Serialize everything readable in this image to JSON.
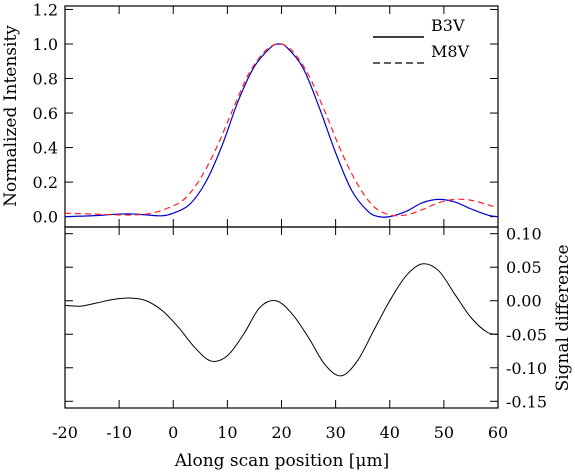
{
  "chart_data": [
    {
      "type": "line",
      "panel": "top",
      "ylabel": "Normalized Intensity",
      "xlim": [
        -20,
        60
      ],
      "ylim": [
        -0.06,
        1.22
      ],
      "y_tick_labels": [
        "0.0",
        "0.2",
        "0.4",
        "0.6",
        "0.8",
        "1.0",
        "1.2"
      ],
      "y_ticks": [
        0.0,
        0.2,
        0.4,
        0.6,
        0.8,
        1.0,
        1.2
      ],
      "grid": false,
      "legend_position": "top-right",
      "colors": {
        "B3V": "#0000cc",
        "M8V": "#ff2020"
      },
      "series": [
        {
          "name": "B3V",
          "linestyle": "solid",
          "x": [
            -20,
            -15,
            -10,
            -7,
            -5,
            -2,
            0,
            3,
            6,
            9,
            12,
            15,
            18,
            19.5,
            21,
            24,
            27,
            30,
            33,
            36,
            38,
            40,
            43,
            46,
            49,
            52,
            55,
            58,
            60
          ],
          "y": [
            0.0,
            0.005,
            0.015,
            0.015,
            0.01,
            0.005,
            0.02,
            0.07,
            0.2,
            0.41,
            0.67,
            0.87,
            0.98,
            1.0,
            0.98,
            0.86,
            0.63,
            0.37,
            0.15,
            0.03,
            0.0,
            0.0,
            0.03,
            0.08,
            0.1,
            0.085,
            0.045,
            0.01,
            0.0
          ]
        },
        {
          "name": "M8V",
          "linestyle": "dashed",
          "x": [
            -20,
            -15,
            -10,
            -7,
            -4,
            -1,
            2,
            5,
            8,
            11,
            14,
            17,
            19.5,
            22,
            25,
            28,
            31,
            34,
            37,
            40,
            43,
            46,
            49,
            52,
            55,
            58,
            60
          ],
          "y": [
            0.02,
            0.015,
            0.01,
            0.01,
            0.02,
            0.05,
            0.1,
            0.22,
            0.4,
            0.62,
            0.83,
            0.96,
            1.0,
            0.96,
            0.82,
            0.61,
            0.38,
            0.19,
            0.06,
            0.01,
            0.01,
            0.04,
            0.08,
            0.1,
            0.095,
            0.07,
            0.05
          ]
        }
      ]
    },
    {
      "type": "line",
      "panel": "bottom",
      "ylabel": "Signal difference",
      "xlabel": "Along scan position [μm]",
      "xlim": [
        -20,
        60
      ],
      "x_ticks": [
        -20,
        -10,
        0,
        10,
        20,
        30,
        40,
        50,
        60
      ],
      "x_tick_labels": [
        "-20",
        "-10",
        "0",
        "10",
        "20",
        "30",
        "40",
        "50",
        "60"
      ],
      "ylim": [
        -0.16,
        0.11
      ],
      "y_ticks": [
        0.1,
        0.05,
        0.0,
        -0.05,
        -0.1,
        -0.15
      ],
      "y_tick_labels": [
        "0.10",
        "0.05",
        "0.00",
        "-0.05",
        "-0.10",
        "-0.15"
      ],
      "grid": false,
      "series": [
        {
          "name": "",
          "linestyle": "solid",
          "x": [
            -20,
            -17,
            -14,
            -11,
            -8,
            -5,
            -2,
            1,
            4,
            7,
            10,
            13,
            16,
            19,
            22,
            25,
            28,
            31,
            34,
            37,
            40,
            43,
            46,
            49,
            52,
            55,
            58,
            60
          ],
          "y": [
            -0.007,
            -0.008,
            -0.003,
            0.002,
            0.004,
            0.0,
            -0.015,
            -0.04,
            -0.07,
            -0.09,
            -0.082,
            -0.05,
            -0.01,
            0.0,
            -0.02,
            -0.055,
            -0.095,
            -0.112,
            -0.09,
            -0.045,
            0.0,
            0.037,
            0.055,
            0.045,
            0.01,
            -0.025,
            -0.047,
            -0.05
          ]
        }
      ]
    }
  ]
}
